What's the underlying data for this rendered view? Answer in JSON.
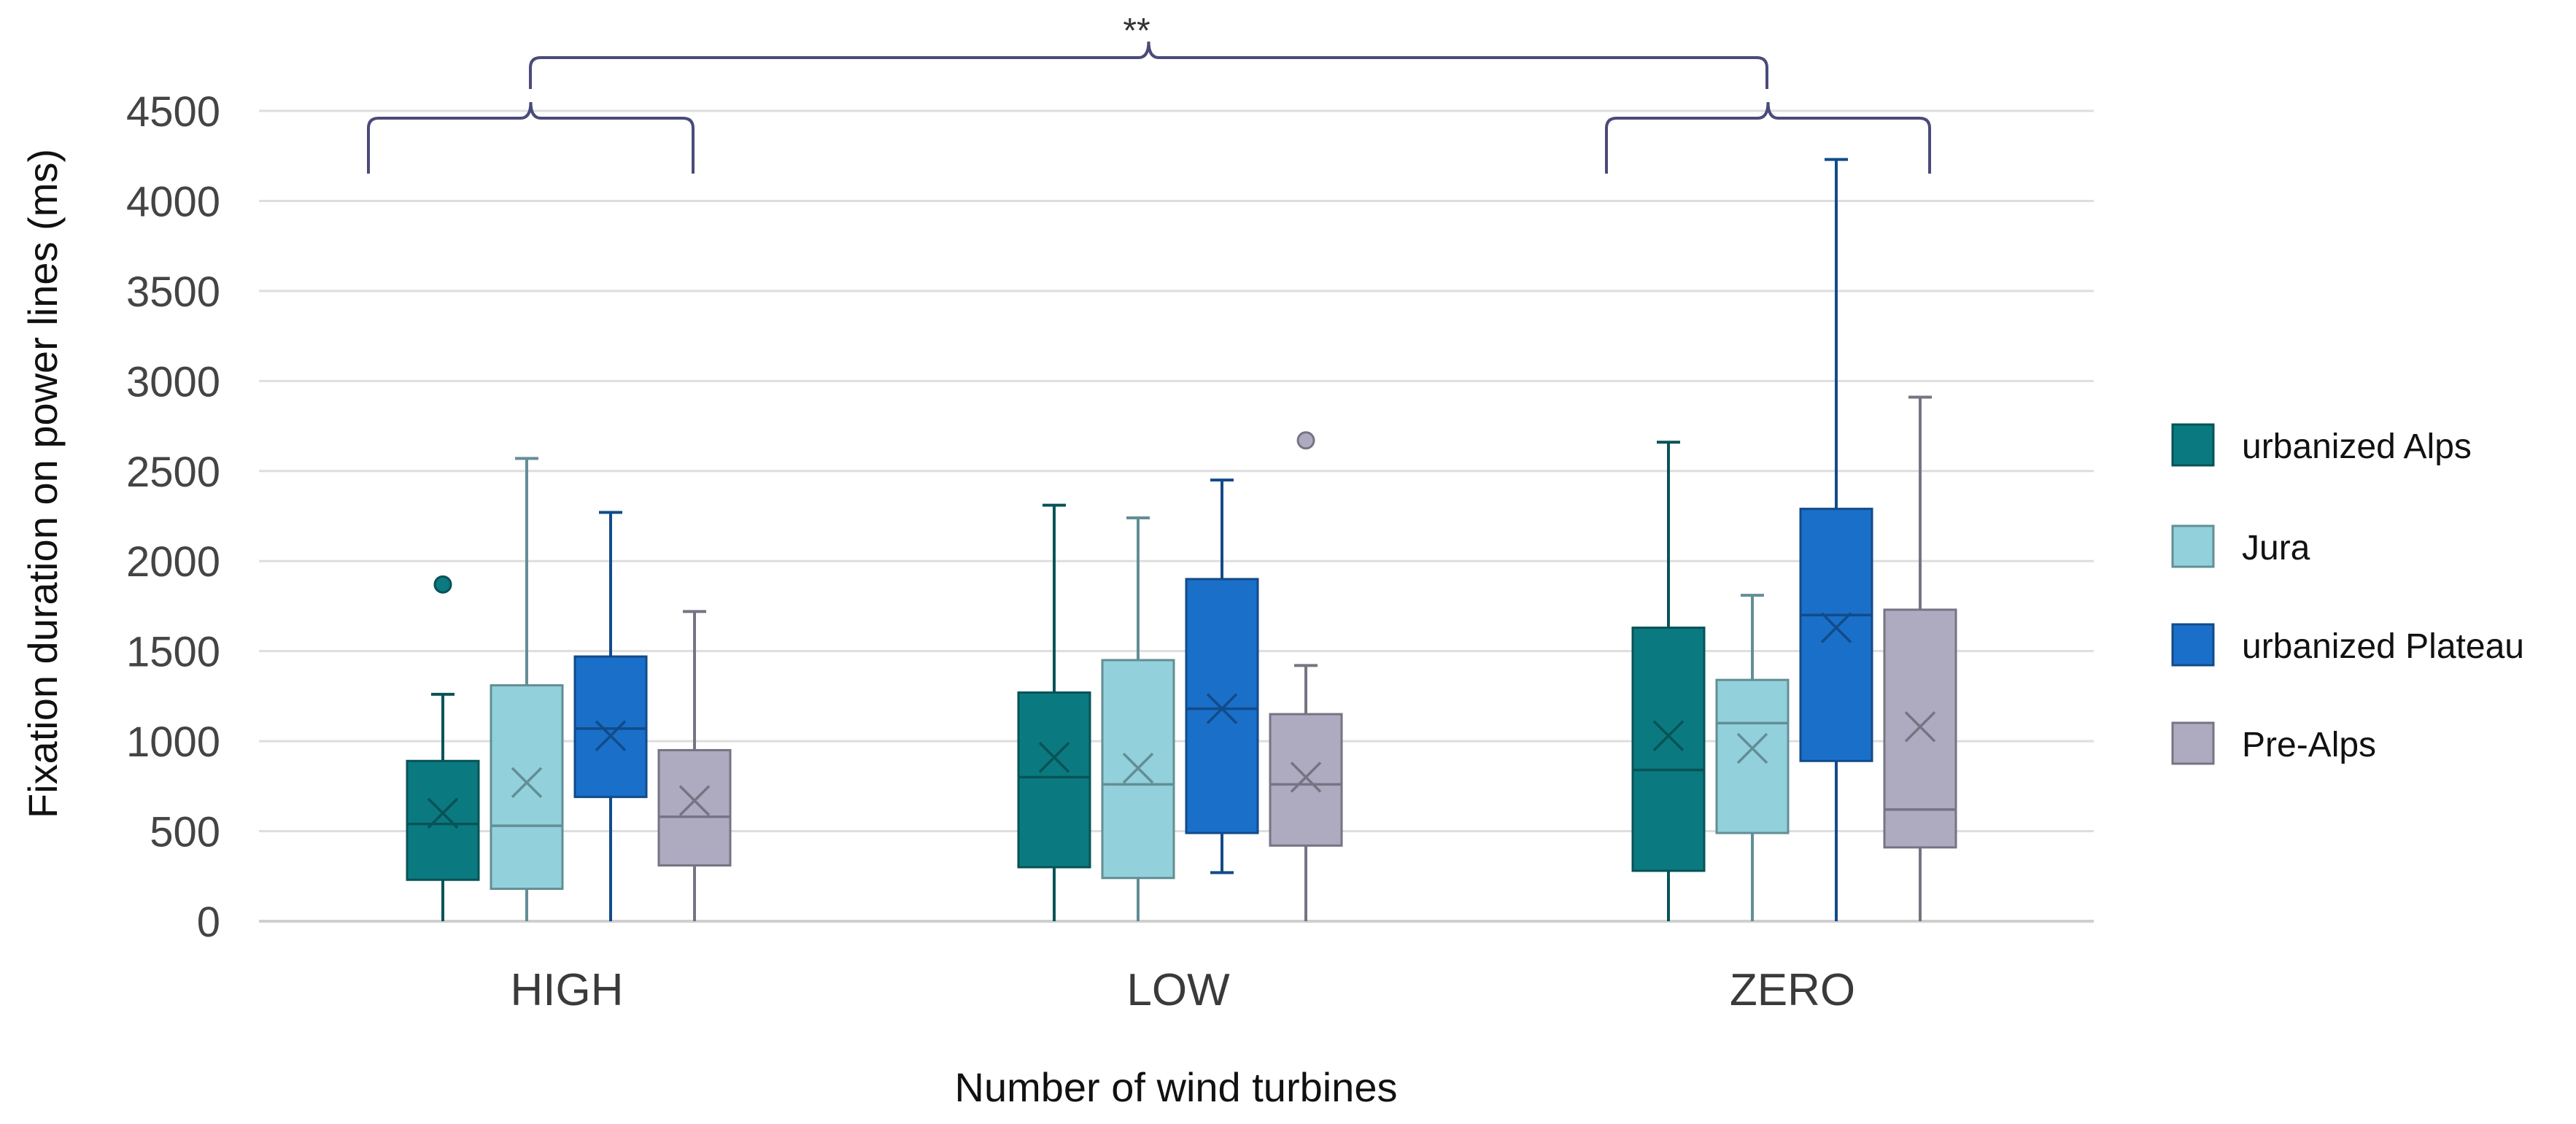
{
  "chart_data": {
    "type": "box",
    "title": "",
    "xlabel": "Number of wind turbines",
    "ylabel": "Fixation duration on power lines (ms)",
    "ylim": [
      0,
      4500
    ],
    "yticks": [
      0,
      500,
      1000,
      1500,
      2000,
      2500,
      3000,
      3500,
      4000,
      4500
    ],
    "grid": true,
    "legend_position": "right",
    "categories": [
      "HIGH",
      "LOW",
      "ZERO"
    ],
    "series": [
      {
        "name": "urbanized Alps",
        "color": "#0a7a80",
        "boxes": [
          {
            "min": 0,
            "q1": 230,
            "median": 540,
            "q3": 890,
            "max": 1260,
            "mean": 600,
            "outliers": [
              1870
            ]
          },
          {
            "min": 0,
            "q1": 300,
            "median": 800,
            "q3": 1270,
            "max": 2310,
            "mean": 910,
            "outliers": []
          },
          {
            "min": 0,
            "q1": 280,
            "median": 840,
            "q3": 1630,
            "max": 2660,
            "mean": 1030,
            "outliers": []
          }
        ]
      },
      {
        "name": "Jura",
        "color": "#92d1db",
        "boxes": [
          {
            "min": 0,
            "q1": 180,
            "median": 530,
            "q3": 1310,
            "max": 2570,
            "mean": 770,
            "outliers": []
          },
          {
            "min": 0,
            "q1": 240,
            "median": 760,
            "q3": 1450,
            "max": 2240,
            "mean": 850,
            "outliers": []
          },
          {
            "min": 0,
            "q1": 490,
            "median": 1100,
            "q3": 1340,
            "max": 1810,
            "mean": 960,
            "outliers": []
          }
        ]
      },
      {
        "name": "urbanized Plateau",
        "color": "#1a6fc9",
        "boxes": [
          {
            "min": 0,
            "q1": 690,
            "median": 1070,
            "q3": 1470,
            "max": 2270,
            "mean": 1030,
            "outliers": []
          },
          {
            "min": 270,
            "q1": 490,
            "median": 1180,
            "q3": 1900,
            "max": 2450,
            "mean": 1180,
            "outliers": []
          },
          {
            "min": 0,
            "q1": 890,
            "median": 1700,
            "q3": 2290,
            "max": 4230,
            "mean": 1630,
            "outliers": []
          }
        ]
      },
      {
        "name": "Pre-Alps",
        "color": "#aeabc1",
        "boxes": [
          {
            "min": 0,
            "q1": 310,
            "median": 580,
            "q3": 950,
            "max": 1720,
            "mean": 670,
            "outliers": []
          },
          {
            "min": 0,
            "q1": 420,
            "median": 760,
            "q3": 1150,
            "max": 1420,
            "mean": 800,
            "outliers": [
              2670
            ]
          },
          {
            "min": 0,
            "q1": 410,
            "median": 620,
            "q3": 1730,
            "max": 2910,
            "mean": 1080,
            "outliers": []
          }
        ]
      }
    ],
    "annotations": [
      {
        "text": "**",
        "between": [
          "HIGH",
          "ZERO"
        ]
      }
    ]
  }
}
